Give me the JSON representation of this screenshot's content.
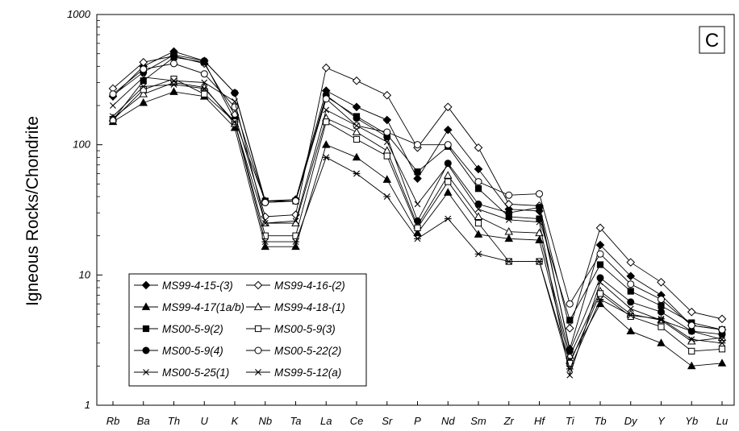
{
  "chart_data": {
    "type": "line",
    "title": "",
    "xlabel": "",
    "ylabel": "Igneous Rocks/Chondrite",
    "yscale": "log",
    "ylim": [
      1,
      1000
    ],
    "yticks": [
      "1",
      "10",
      "100",
      "1000"
    ],
    "panel_label": "C",
    "legend_position": "lower-left",
    "grid": false,
    "categories": [
      "Rb",
      "Ba",
      "Th",
      "U",
      "K",
      "Nb",
      "Ta",
      "La",
      "Ce",
      "Sr",
      "P",
      "Nd",
      "Sm",
      "Zr",
      "Hf",
      "Ti",
      "Tb",
      "Dy",
      "Y",
      "Yb",
      "Lu"
    ],
    "series": [
      {
        "name": "MS99-4-15-(3)",
        "marker": "diamond-filled",
        "values": [
          235,
          400,
          520,
          440,
          250,
          37,
          38,
          260,
          195,
          155,
          55,
          130,
          65,
          32,
          31,
          2.7,
          17,
          9.8,
          7,
          4.1,
          3.8
        ]
      },
      {
        "name": "MS99-4-16-(2)",
        "marker": "diamond-open",
        "values": [
          270,
          430,
          480,
          420,
          170,
          28,
          29,
          390,
          310,
          240,
          95,
          195,
          95,
          35,
          34,
          3.9,
          23,
          12.5,
          8.8,
          5.2,
          4.6
        ]
      },
      {
        "name": "MS99-4-17(1a/b)",
        "marker": "triangle-filled",
        "values": [
          150,
          210,
          255,
          235,
          135,
          16.5,
          16.5,
          100,
          80,
          54,
          21,
          43,
          20.5,
          19,
          18.5,
          2.2,
          6,
          3.7,
          3,
          2,
          2.1
        ]
      },
      {
        "name": "MS99-4-18-(1)",
        "marker": "triangle-open",
        "values": [
          160,
          245,
          300,
          275,
          145,
          25,
          25,
          160,
          125,
          90,
          24,
          58,
          28,
          21.5,
          21,
          2.4,
          7.5,
          5,
          4.5,
          3.1,
          3.3
        ]
      },
      {
        "name": "MS00-5-9(2)",
        "marker": "square-filled",
        "values": [
          155,
          310,
          470,
          430,
          155,
          37,
          37,
          235,
          165,
          120,
          62,
          97,
          46,
          28,
          27,
          4.5,
          12,
          7.5,
          5.8,
          4.3,
          3.8
        ]
      },
      {
        "name": "MS00-5-9(3)",
        "marker": "square-open",
        "values": [
          155,
          265,
          320,
          245,
          150,
          20,
          20,
          150,
          110,
          82,
          23,
          52,
          25,
          12.7,
          12.7,
          2.1,
          7.2,
          4.8,
          4,
          2.6,
          2.7
        ]
      },
      {
        "name": "MS00-5-9(4)",
        "marker": "circle-filled",
        "values": [
          240,
          360,
          490,
          440,
          250,
          36,
          37,
          240,
          160,
          115,
          26,
          72,
          35,
          30,
          33,
          2.6,
          9.5,
          6.2,
          5.2,
          3.7,
          3.5
        ]
      },
      {
        "name": "MS00-5-22(2)",
        "marker": "circle-open",
        "values": [
          245,
          380,
          420,
          350,
          195,
          36,
          37,
          225,
          140,
          125,
          100,
          100,
          52,
          41,
          42,
          6,
          14.5,
          8.5,
          6.5,
          4.1,
          3.8
        ]
      },
      {
        "name": "MS00-5-25(1)",
        "marker": "x",
        "values": [
          200,
          330,
          310,
          300,
          215,
          25,
          26,
          185,
          140,
          105,
          35,
          70,
          32,
          26.5,
          25.5,
          1.7,
          8.8,
          5.5,
          4.5,
          3.7,
          3.2
        ]
      },
      {
        "name": "MS99-5-12(a)",
        "marker": "asterisk",
        "values": [
          165,
          280,
          290,
          270,
          150,
          18,
          18,
          80,
          60,
          40,
          19,
          27,
          14.5,
          12.7,
          12.7,
          1.9,
          6.5,
          4.9,
          4.6,
          3.2,
          3
        ]
      }
    ]
  }
}
